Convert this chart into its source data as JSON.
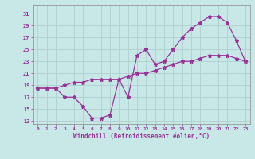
{
  "xlabel": "Windchill (Refroidissement éolien,°C)",
  "bg_color": "#c8e8e8",
  "line_color": "#993399",
  "grid_color": "#aacccc",
  "xlim": [
    -0.5,
    23.5
  ],
  "ylim": [
    12.5,
    32.5
  ],
  "yticks": [
    13,
    15,
    17,
    19,
    21,
    23,
    25,
    27,
    29,
    31
  ],
  "xticks": [
    0,
    1,
    2,
    3,
    4,
    5,
    6,
    7,
    8,
    9,
    10,
    11,
    12,
    13,
    14,
    15,
    16,
    17,
    18,
    19,
    20,
    21,
    22,
    23
  ],
  "series1_x": [
    0,
    1,
    2,
    3,
    4,
    5,
    6,
    7,
    8,
    9,
    10,
    11,
    12,
    13,
    14,
    15,
    16,
    17,
    18,
    19,
    20,
    21,
    22,
    23
  ],
  "series1_y": [
    18.5,
    18.5,
    18.5,
    17.0,
    17.0,
    15.5,
    13.5,
    13.5,
    14.0,
    20.0,
    17.0,
    24.0,
    25.0,
    22.5,
    23.0,
    25.0,
    27.0,
    28.5,
    29.5,
    30.5,
    30.5,
    29.5,
    26.5,
    23.0
  ],
  "series2_x": [
    0,
    1,
    2,
    3,
    4,
    5,
    6,
    7,
    8,
    9,
    10,
    11,
    12,
    13,
    14,
    15,
    16,
    17,
    18,
    19,
    20,
    21,
    22,
    23
  ],
  "series2_y": [
    18.5,
    18.5,
    18.5,
    19.0,
    19.5,
    19.5,
    20.0,
    20.0,
    20.0,
    20.0,
    20.5,
    21.0,
    21.0,
    21.5,
    22.0,
    22.5,
    23.0,
    23.0,
    23.5,
    24.0,
    24.0,
    24.0,
    23.5,
    23.0
  ]
}
